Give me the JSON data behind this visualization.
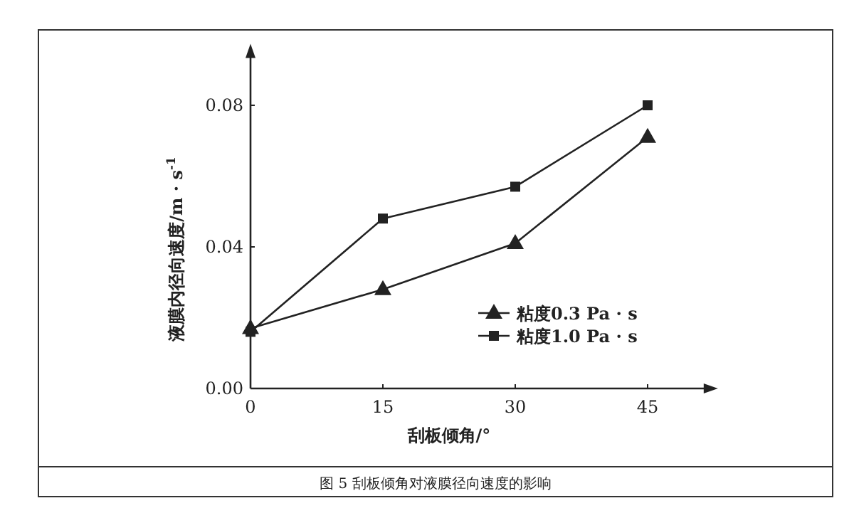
{
  "chart_data": {
    "type": "line",
    "xlabel": "刮板倾角/°",
    "ylabel": "液膜内径向速度/m · s$^{-1}$",
    "annotations": [
      "图 5 刮板倾角对液膜径向速度的影响"
    ],
    "x": [
      0,
      15,
      30,
      45
    ],
    "xlim": [
      0,
      52
    ],
    "ylim": [
      0,
      0.095
    ],
    "xticks": [
      0,
      15,
      30,
      45
    ],
    "yticks": [
      {
        "value": 0,
        "label": "0.00"
      },
      {
        "value": 0.04,
        "label": "0.04"
      },
      {
        "value": 0.08,
        "label": "0.08"
      }
    ],
    "grid": false,
    "legend": "bottom right",
    "line_style": "solid",
    "series": [
      {
        "name": "粘度0.3 Pa · s",
        "color": "#222222",
        "marker": "triangle",
        "values": [
          0.017,
          0.028,
          0.041,
          0.071
        ]
      },
      {
        "name": "粘度1.0 Pa · s",
        "color": "#222222",
        "marker": "square",
        "values": [
          0.016,
          0.048,
          0.057,
          0.08
        ]
      }
    ]
  }
}
